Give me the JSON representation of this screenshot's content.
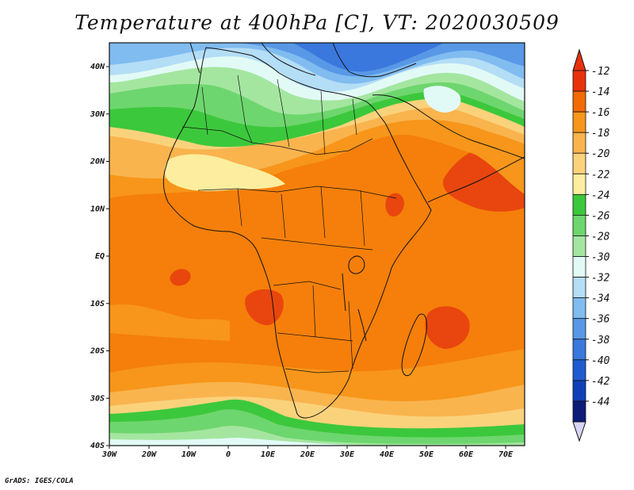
{
  "title": "Temperature at 400hPa [C], VT: 2020030509",
  "credit": "GrADS: IGES/COLA",
  "lat_ticks": [
    "40N",
    "30N",
    "20N",
    "10N",
    "EQ",
    "10S",
    "20S",
    "30S",
    "40S"
  ],
  "lon_ticks": [
    "30W",
    "20W",
    "10W",
    "0",
    "10E",
    "20E",
    "30E",
    "40E",
    "50E",
    "60E",
    "70E"
  ],
  "colorbar": {
    "labels": [
      "-12",
      "-14",
      "-16",
      "-18",
      "-20",
      "-22",
      "-24",
      "-26",
      "-28",
      "-30",
      "-32",
      "-34",
      "-36",
      "-38",
      "-40",
      "-42",
      "-44"
    ],
    "colors": [
      "#e8320c",
      "#f26a06",
      "#f7961a",
      "#f9b44e",
      "#fbd27c",
      "#fcee9e",
      "#3cc83c",
      "#6ed66e",
      "#a4e6a0",
      "#e2faf6",
      "#b4ddf6",
      "#80bcef",
      "#5898e6",
      "#3a78dd",
      "#205ad0",
      "#1040b8",
      "#0c1c78"
    ],
    "top_arrow_color": "#e8320c",
    "bottom_arrow_color": "#d8d4f6"
  },
  "map_colors": {
    "hot": "#e8460e",
    "warm": "#f57f0a",
    "mid": "#f7961a",
    "pale_orange": "#f9b44e",
    "yellow": "#fbd27c",
    "pale_yellow": "#fcee9e",
    "green_dark": "#3cc83c",
    "green": "#6ed66e",
    "green_light": "#a4e6a0",
    "cyan": "#e2faf6",
    "blue_light": "#b4ddf6",
    "blue": "#80bcef",
    "blue_mid": "#5898e6",
    "blue_dark": "#3a78dd",
    "border": "#111111"
  }
}
